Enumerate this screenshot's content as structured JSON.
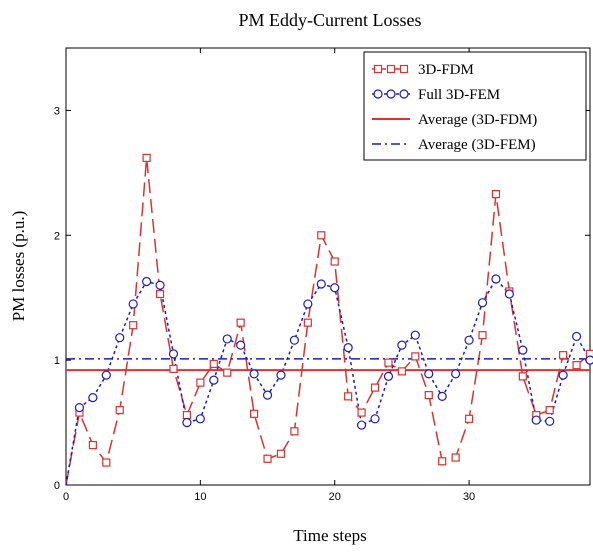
{
  "chart_data": {
    "type": "line",
    "title": "PM Eddy-Current Losses",
    "xlabel": "Time steps",
    "ylabel": "PM losses (p.u.)",
    "xlim": [
      0,
      39
    ],
    "ylim": [
      0,
      3.5
    ],
    "xticks": [
      0,
      10,
      20,
      30
    ],
    "yticks": [
      0,
      1,
      2,
      3
    ],
    "grid": false,
    "legend_position": "top-right",
    "series": [
      {
        "name": "3D-FDM",
        "style": "dashed",
        "marker": "square",
        "color": "#e03030",
        "x": [
          0,
          1,
          2,
          3,
          4,
          5,
          6,
          7,
          8,
          9,
          10,
          11,
          12,
          13,
          14,
          15,
          16,
          17,
          18,
          19,
          20,
          21,
          22,
          23,
          24,
          25,
          26,
          27,
          28,
          29,
          30,
          31,
          32,
          33,
          34,
          35,
          36,
          37,
          38,
          39
        ],
        "y": [
          0,
          0.58,
          0.32,
          0.18,
          0.6,
          1.28,
          2.62,
          1.53,
          0.93,
          0.56,
          0.82,
          0.97,
          0.9,
          1.3,
          0.57,
          0.21,
          0.25,
          0.43,
          1.3,
          2.0,
          1.79,
          0.71,
          0.58,
          0.78,
          0.98,
          0.91,
          1.03,
          0.72,
          0.19,
          0.22,
          0.53,
          1.2,
          2.33,
          1.55,
          0.87,
          0.56,
          0.6,
          1.04,
          0.96,
          1.05
        ]
      },
      {
        "name": "Full 3D-FEM",
        "style": "dotted",
        "marker": "circle",
        "color": "#1a1acc",
        "x": [
          0,
          1,
          2,
          3,
          4,
          5,
          6,
          7,
          8,
          9,
          10,
          11,
          12,
          13,
          14,
          15,
          16,
          17,
          18,
          19,
          20,
          21,
          22,
          23,
          24,
          25,
          26,
          27,
          28,
          29,
          30,
          31,
          32,
          33,
          34,
          35,
          36,
          37,
          38,
          39
        ],
        "y": [
          0,
          0.62,
          0.7,
          0.88,
          1.18,
          1.45,
          1.63,
          1.6,
          1.05,
          0.5,
          0.53,
          0.84,
          1.17,
          1.12,
          0.89,
          0.72,
          0.88,
          1.16,
          1.45,
          1.61,
          1.58,
          1.1,
          0.48,
          0.53,
          0.87,
          1.12,
          1.2,
          0.89,
          0.71,
          0.89,
          1.16,
          1.46,
          1.65,
          1.53,
          1.08,
          0.52,
          0.51,
          0.88,
          1.19,
          1.0
        ]
      },
      {
        "name": "Average (3D-FDM)",
        "style": "solid",
        "marker": "none",
        "color": "#e03030",
        "x": [
          0,
          39
        ],
        "y": [
          0.92,
          0.92
        ]
      },
      {
        "name": "Average (3D-FEM)",
        "style": "dashdot",
        "marker": "none",
        "color": "#1a1acc",
        "x": [
          0,
          39
        ],
        "y": [
          1.01,
          1.01
        ]
      }
    ]
  }
}
